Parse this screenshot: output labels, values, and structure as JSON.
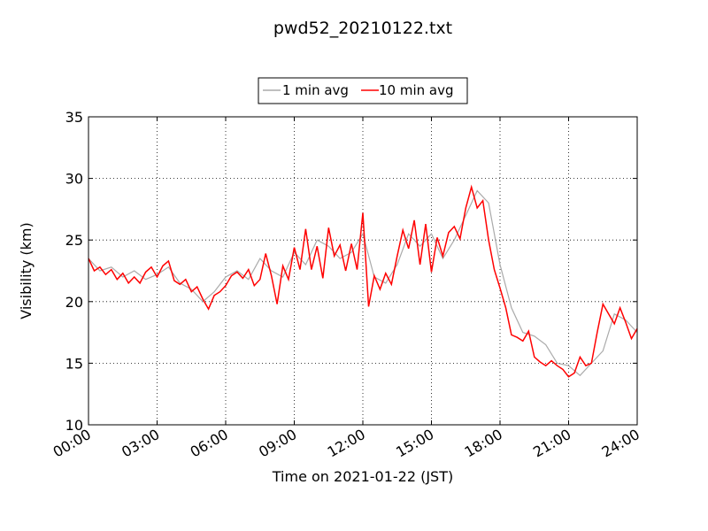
{
  "chart_data": {
    "type": "line",
    "title": "pwd52_20210122.txt",
    "xlabel": "Time on 2021-01-22 (JST)",
    "ylabel": "Visibility (km)",
    "xlim": [
      0,
      24
    ],
    "ylim": [
      10,
      35
    ],
    "x_tick_labels": [
      "00:00",
      "03:00",
      "06:00",
      "09:00",
      "12:00",
      "15:00",
      "18:00",
      "21:00",
      "24:00"
    ],
    "y_tick_labels": [
      "10",
      "15",
      "20",
      "25",
      "30",
      "35"
    ],
    "grid": true,
    "legend": {
      "placement": "top-center"
    },
    "series": [
      {
        "name": "1 min avg",
        "color": "#aaaaaa",
        "x": [
          0,
          0.5,
          1,
          1.5,
          2,
          2.5,
          3,
          3.5,
          4,
          4.5,
          5,
          5.5,
          6,
          6.5,
          7,
          7.5,
          8,
          8.5,
          9,
          9.5,
          10,
          10.5,
          11,
          11.5,
          12,
          12.5,
          13,
          13.5,
          14,
          14.5,
          15,
          15.5,
          16,
          16.5,
          17,
          17.5,
          18,
          18.5,
          19,
          19.5,
          20,
          20.5,
          21,
          21.5,
          22,
          22.5,
          23,
          23.5,
          24
        ],
        "values": [
          23.5,
          22.5,
          22.8,
          22.0,
          22.5,
          21.8,
          22.2,
          22.8,
          21.5,
          21.0,
          20.0,
          20.8,
          22.0,
          22.5,
          21.8,
          23.5,
          22.5,
          22.0,
          24.0,
          23.0,
          25.0,
          24.5,
          23.5,
          24.0,
          25.5,
          22.0,
          21.5,
          23.0,
          25.5,
          24.5,
          25.5,
          23.5,
          25.0,
          27.0,
          29.0,
          28.0,
          23.0,
          19.5,
          17.5,
          17.2,
          16.5,
          15.0,
          14.8,
          14.0,
          15.0,
          16.0,
          19.0,
          18.5,
          17.5
        ]
      },
      {
        "name": "10 min avg",
        "color": "#ff0000",
        "x": [
          0,
          0.25,
          0.5,
          0.75,
          1,
          1.25,
          1.5,
          1.75,
          2,
          2.25,
          2.5,
          2.75,
          3,
          3.25,
          3.5,
          3.75,
          4,
          4.25,
          4.5,
          4.75,
          5,
          5.25,
          5.5,
          5.75,
          6,
          6.25,
          6.5,
          6.75,
          7,
          7.25,
          7.5,
          7.75,
          8,
          8.25,
          8.5,
          8.75,
          9,
          9.25,
          9.5,
          9.75,
          10,
          10.25,
          10.5,
          10.75,
          11,
          11.25,
          11.5,
          11.75,
          12,
          12.25,
          12.5,
          12.75,
          13,
          13.25,
          13.5,
          13.75,
          14,
          14.25,
          14.5,
          14.75,
          15,
          15.25,
          15.5,
          15.75,
          16,
          16.25,
          16.5,
          16.75,
          17,
          17.25,
          17.5,
          17.75,
          18,
          18.25,
          18.5,
          18.75,
          19,
          19.25,
          19.5,
          19.75,
          20,
          20.25,
          20.5,
          20.75,
          21,
          21.25,
          21.5,
          21.75,
          22,
          22.25,
          22.5,
          22.75,
          23,
          23.25,
          23.5,
          23.75,
          24
        ],
        "values": [
          23.5,
          22.5,
          22.8,
          22.2,
          22.6,
          21.8,
          22.3,
          21.5,
          22.0,
          21.5,
          22.4,
          22.8,
          22.0,
          22.9,
          23.3,
          21.7,
          21.4,
          21.8,
          20.8,
          21.2,
          20.2,
          19.4,
          20.5,
          20.8,
          21.3,
          22.1,
          22.4,
          21.9,
          22.6,
          21.3,
          21.8,
          23.9,
          22.1,
          19.8,
          22.9,
          21.8,
          24.4,
          22.6,
          25.9,
          22.6,
          24.5,
          21.9,
          26.0,
          23.7,
          24.6,
          22.5,
          24.7,
          22.6,
          27.2,
          19.6,
          22.1,
          21.0,
          22.3,
          21.4,
          23.7,
          25.8,
          24.3,
          26.6,
          23.0,
          26.3,
          22.4,
          25.2,
          23.7,
          25.6,
          26.1,
          25.1,
          27.6,
          29.3,
          27.6,
          28.2,
          25.0,
          22.6,
          21.1,
          19.5,
          17.3,
          17.1,
          16.8,
          17.6,
          15.5,
          15.1,
          14.8,
          15.2,
          14.8,
          14.5,
          13.9,
          14.2,
          15.5,
          14.8,
          15.0,
          17.5,
          19.8,
          19.0,
          18.2,
          19.5,
          18.3,
          17.0,
          17.8
        ]
      }
    ]
  }
}
